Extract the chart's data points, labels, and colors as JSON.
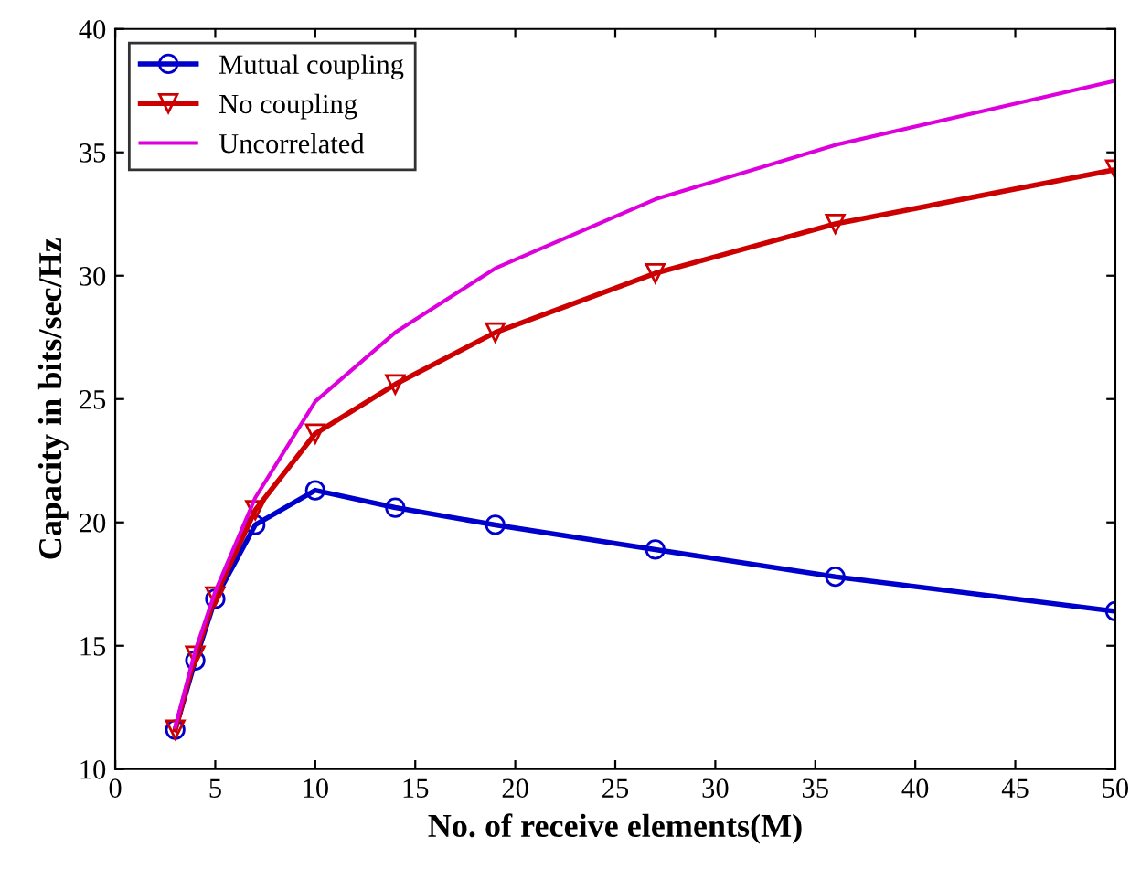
{
  "chart_data": {
    "type": "line",
    "xlabel": "No. of receive elements(M)",
    "ylabel": "Capacity in bits/sec/Hz",
    "x": [
      3,
      4,
      5,
      7,
      10,
      14,
      19,
      27,
      36,
      50
    ],
    "series": [
      {
        "name": "Mutual coupling",
        "color": "#0000cc",
        "marker": "circle",
        "values": [
          11.6,
          14.4,
          16.9,
          19.9,
          21.3,
          20.6,
          19.9,
          18.9,
          17.8,
          16.4
        ]
      },
      {
        "name": "No coupling",
        "color": "#cc0000",
        "marker": "triangle",
        "values": [
          11.6,
          14.6,
          17.0,
          20.5,
          23.6,
          25.6,
          27.7,
          30.1,
          32.1,
          34.3
        ]
      },
      {
        "name": "Uncorrelated",
        "color": "#dd00dd",
        "marker": "none",
        "values": [
          11.7,
          14.8,
          17.2,
          21.0,
          24.9,
          27.7,
          30.3,
          33.1,
          35.3,
          37.9
        ]
      }
    ],
    "xlim": [
      0,
      50
    ],
    "xticks": [
      0,
      5,
      10,
      15,
      20,
      25,
      30,
      35,
      40,
      45,
      50
    ],
    "ylim": [
      10,
      40
    ],
    "yticks": [
      10,
      15,
      20,
      25,
      30,
      35,
      40
    ],
    "legend": "top left",
    "grid": false
  }
}
